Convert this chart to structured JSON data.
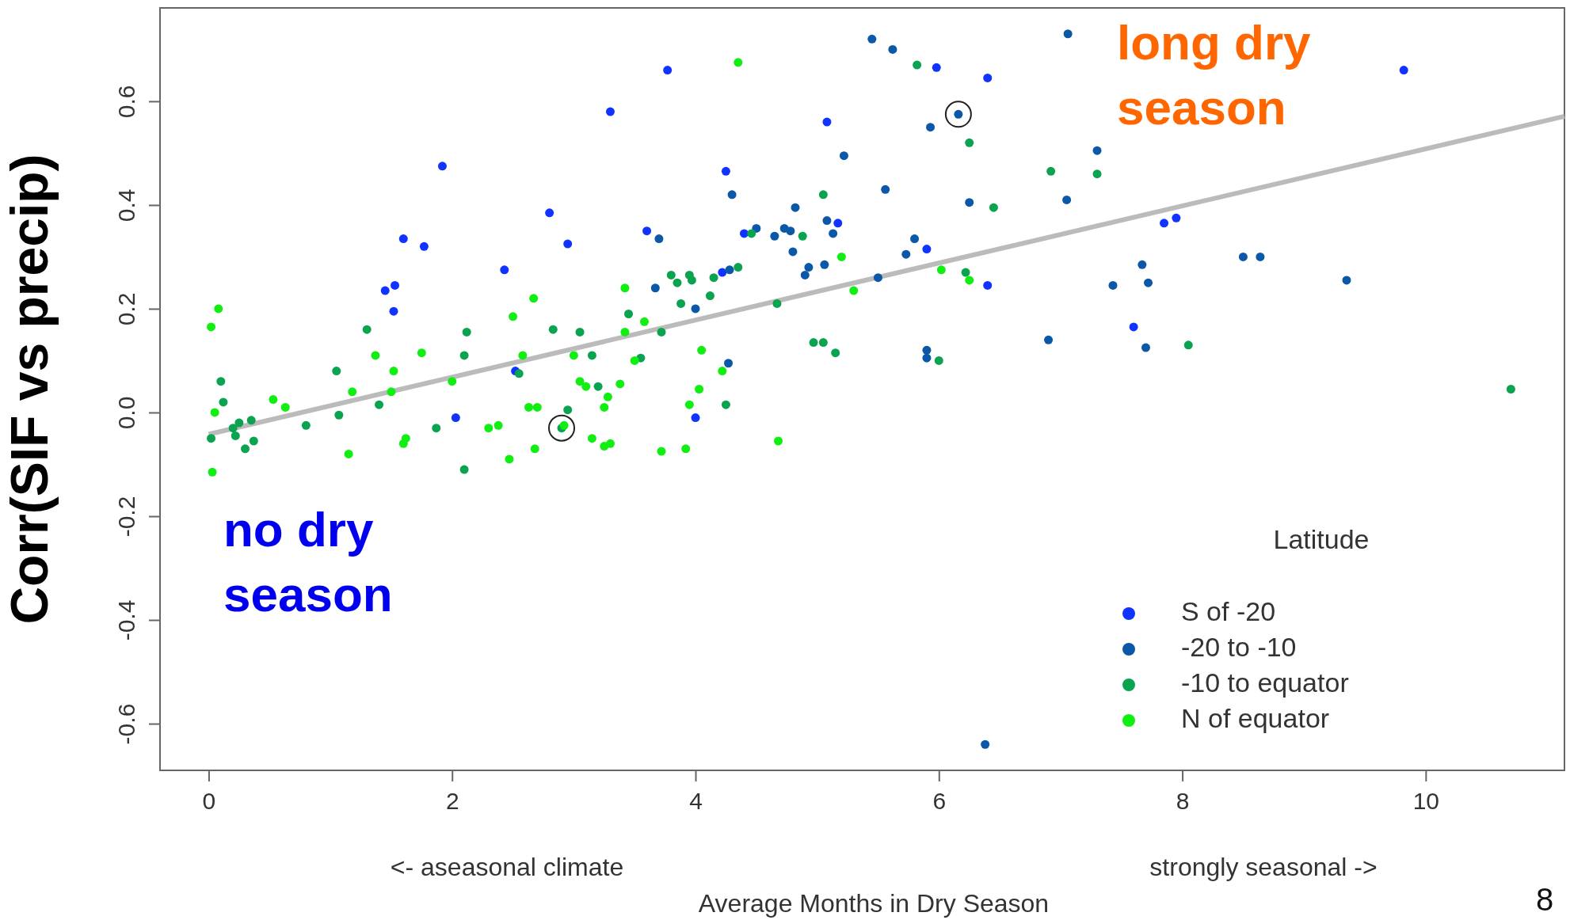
{
  "chart_data": {
    "type": "scatter",
    "ylabel": "Corr(SIF vs precip)",
    "xlabel": "Average Months in Dry Season",
    "legend_title": "Latitude",
    "legend": "bottom right",
    "marker": "circle",
    "grid": false,
    "xlim": [
      -0.4,
      11.14
    ],
    "ylim": [
      -0.69,
      0.78
    ],
    "xticks": [
      0,
      2,
      4,
      6,
      8,
      10
    ],
    "yticks": [
      -0.6,
      -0.4,
      -0.2,
      {
        "value": 0,
        "label": "0.0"
      },
      0.2,
      0.4,
      0.6
    ],
    "annotations": [
      "no dry season",
      "long dry season",
      "<- aseasonal climate",
      "strongly seasonal ->",
      "8"
    ],
    "series": [
      {
        "name": "S of -20",
        "color": "#1133ff",
        "x": [
          1.92,
          3.3,
          3.77,
          2.8,
          2.95,
          1.6,
          1.77,
          1.45,
          1.53,
          1.52,
          2.43,
          2.52,
          2.03,
          3.6,
          4.0,
          4.25,
          4.4,
          5.08,
          5.17,
          5.9,
          6.4,
          5.98,
          6.4,
          7.85,
          7.95,
          7.6,
          9.82,
          4.22
        ],
        "values": [
          0.475,
          0.58,
          0.66,
          0.385,
          0.325,
          0.335,
          0.32,
          0.235,
          0.245,
          0.195,
          0.275,
          0.08,
          -0.01,
          0.35,
          -0.01,
          0.465,
          0.345,
          0.56,
          0.365,
          0.315,
          0.645,
          0.665,
          0.245,
          0.365,
          0.375,
          0.165,
          0.66,
          0.27
        ]
      },
      {
        "name": "-20 to -10",
        "color": "#0b57a8",
        "x": [
          5.45,
          5.62,
          5.93,
          6.16,
          7.06,
          5.22,
          5.56,
          6.25,
          7.05,
          7.3,
          4.3,
          4.82,
          4.5,
          4.65,
          4.73,
          4.78,
          5.08,
          5.13,
          4.8,
          4.9,
          4.93,
          5.06,
          3.7,
          3.67,
          4.0,
          4.28,
          5.8,
          5.73,
          5.5,
          5.9,
          5.9,
          4.27,
          7.43,
          7.67,
          7.72,
          8.5,
          8.64,
          9.35,
          6.9,
          7.7,
          6.38
        ],
        "values": [
          0.72,
          0.7,
          0.55,
          0.575,
          0.73,
          0.495,
          0.43,
          0.405,
          0.41,
          0.505,
          0.42,
          0.395,
          0.355,
          0.34,
          0.355,
          0.35,
          0.37,
          0.345,
          0.31,
          0.265,
          0.28,
          0.285,
          0.335,
          0.24,
          0.2,
          0.275,
          0.335,
          0.305,
          0.26,
          0.12,
          0.105,
          0.095,
          0.245,
          0.285,
          0.25,
          0.3,
          0.3,
          0.255,
          0.14,
          0.125,
          -0.64
        ]
      },
      {
        "name": "-10 to equator",
        "color": "#0aa350",
        "x": [
          0.02,
          0.1,
          0.12,
          0.2,
          0.25,
          0.3,
          0.35,
          0.37,
          0.22,
          0.8,
          1.05,
          1.07,
          1.4,
          1.3,
          1.87,
          2.1,
          2.12,
          2.1,
          2.55,
          2.83,
          3.05,
          3.15,
          3.2,
          2.95,
          3.45,
          3.55,
          3.72,
          3.8,
          3.85,
          3.88,
          3.95,
          3.97,
          4.12,
          4.15,
          4.35,
          4.46,
          4.88,
          4.67,
          4.97,
          5.05,
          5.15,
          4.25,
          5.05,
          5.82,
          6.25,
          6.45,
          6.22,
          6.92,
          7.3,
          8.05,
          10.7,
          6.0,
          2.9
        ],
        "values": [
          -0.05,
          0.06,
          0.02,
          -0.03,
          -0.02,
          -0.07,
          -0.015,
          -0.055,
          -0.045,
          -0.025,
          0.08,
          -0.005,
          0.015,
          0.16,
          -0.03,
          0.11,
          0.155,
          -0.11,
          0.075,
          0.16,
          0.155,
          0.11,
          0.05,
          0.005,
          0.19,
          0.105,
          0.155,
          0.265,
          0.25,
          0.21,
          0.265,
          0.255,
          0.225,
          0.26,
          0.28,
          0.345,
          0.34,
          0.21,
          0.135,
          0.135,
          0.115,
          0.015,
          0.42,
          0.67,
          0.52,
          0.395,
          0.27,
          0.465,
          0.46,
          0.13,
          0.045,
          0.1,
          -0.03
        ]
      },
      {
        "name": "N of equator",
        "color": "#11ee11",
        "x": [
          0.02,
          0.08,
          0.03,
          0.05,
          0.53,
          0.63,
          1.18,
          1.15,
          1.37,
          1.5,
          1.6,
          1.52,
          1.75,
          1.62,
          2.0,
          2.3,
          2.38,
          2.47,
          2.5,
          2.58,
          2.67,
          2.63,
          2.7,
          2.68,
          2.92,
          3.0,
          3.05,
          3.1,
          3.15,
          3.25,
          3.28,
          3.3,
          3.25,
          3.38,
          3.42,
          3.42,
          3.5,
          3.58,
          3.72,
          3.92,
          3.95,
          4.03,
          4.05,
          4.22,
          4.35,
          4.68,
          5.2,
          5.3,
          6.02,
          6.25
        ],
        "values": [
          0.165,
          0.2,
          -0.115,
          0.0,
          0.025,
          0.01,
          0.04,
          -0.08,
          0.11,
          0.04,
          -0.06,
          0.08,
          0.115,
          -0.05,
          0.06,
          -0.03,
          -0.025,
          -0.09,
          0.185,
          0.11,
          0.22,
          0.01,
          0.01,
          -0.07,
          -0.025,
          0.11,
          0.06,
          0.05,
          -0.05,
          -0.065,
          0.03,
          -0.06,
          0.01,
          0.055,
          0.24,
          0.155,
          0.1,
          0.175,
          -0.075,
          -0.07,
          0.015,
          0.045,
          0.12,
          0.08,
          0.675,
          -0.055,
          0.3,
          0.235,
          0.275,
          0.255
        ]
      },
      {
        "type": "line",
        "marker": "none",
        "color": "#bbbbbb",
        "x": [
          0,
          11.14
        ],
        "values": [
          -0.042,
          0.571
        ]
      }
    ]
  }
}
